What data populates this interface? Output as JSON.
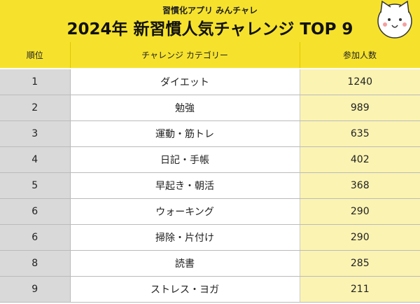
{
  "header": {
    "subtitle": "習慣化アプリ みんチャレ",
    "title": "2024年 新習慣人気チャレンジ TOP 9"
  },
  "table": {
    "columns": [
      "順位",
      "チャレンジ カテゴリー",
      "参加人数"
    ],
    "rows": [
      [
        1,
        "ダイエット",
        1240
      ],
      [
        2,
        "勉強",
        989
      ],
      [
        3,
        "運動・筋トレ",
        635
      ],
      [
        4,
        "日記・手帳",
        402
      ],
      [
        5,
        "早起き・朝活",
        368
      ],
      [
        6,
        "ウォーキング",
        290
      ],
      [
        6,
        "掃除・片付け",
        290
      ],
      [
        8,
        "読書",
        285
      ],
      [
        9,
        "ストレス・ヨガ",
        211
      ]
    ]
  }
}
